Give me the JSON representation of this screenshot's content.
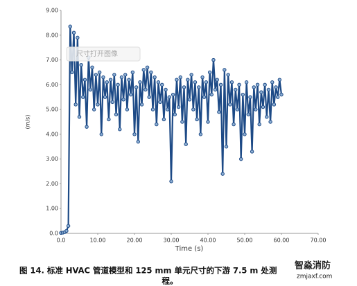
{
  "chart_data": {
    "type": "line",
    "ylabel": "(m/s)",
    "xlabel": "Time (s)",
    "caption": [
      "图 14. 标准 HVAC 管道模型和 125 mm 单元尺寸的下游 7.5 m 处测",
      "程。"
    ],
    "overlay_button": "尺寸打开图像",
    "watermark": [
      "智淼消防",
      "zmjaxf.com"
    ],
    "xlim": [
      0,
      70
    ],
    "ylim": [
      0,
      9
    ],
    "xticks": [
      {
        "value": 0,
        "label": "0.0"
      },
      {
        "value": 10,
        "label": "10.00"
      },
      {
        "value": 20,
        "label": "20.00"
      },
      {
        "value": 30,
        "label": "30.00"
      },
      {
        "value": 40,
        "label": "40.00"
      },
      {
        "value": 50,
        "label": "50.00"
      },
      {
        "value": 60,
        "label": "60.00"
      },
      {
        "value": 70,
        "label": "70.00"
      }
    ],
    "yticks": [
      {
        "value": 0,
        "label": "0.0"
      },
      {
        "value": 1,
        "label": "1.00"
      },
      {
        "value": 2,
        "label": "2.00"
      },
      {
        "value": 3,
        "label": "3.00"
      },
      {
        "value": 4,
        "label": "4.00"
      },
      {
        "value": 5,
        "label": "5.00"
      },
      {
        "value": 6,
        "label": "6.00"
      },
      {
        "value": 7,
        "label": "7.00"
      },
      {
        "value": 8,
        "label": "8.00"
      },
      {
        "value": 9,
        "label": "9.00"
      }
    ],
    "grid": false,
    "x": [
      0,
      0.5,
      1,
      1.5,
      2,
      2.5,
      3,
      3.5,
      4,
      4.5,
      5,
      5.5,
      6,
      6.5,
      7,
      7.5,
      8,
      8.5,
      9,
      9.5,
      10,
      10.5,
      11,
      11.5,
      12,
      12.5,
      13,
      13.5,
      14,
      14.5,
      15,
      15.5,
      16,
      16.5,
      17,
      17.5,
      18,
      18.5,
      19,
      19.5,
      20,
      20.5,
      21,
      21.5,
      22,
      22.5,
      23,
      23.5,
      24,
      24.5,
      25,
      25.5,
      26,
      26.5,
      27,
      27.5,
      28,
      28.5,
      29,
      29.5,
      30,
      30.5,
      31,
      31.5,
      32,
      32.5,
      33,
      33.5,
      34,
      34.5,
      35,
      35.5,
      36,
      36.5,
      37,
      37.5,
      38,
      38.5,
      39,
      39.5,
      40,
      40.5,
      41,
      41.5,
      42,
      42.5,
      43,
      43.5,
      44,
      44.5,
      45,
      45.5,
      46,
      46.5,
      47,
      47.5,
      48,
      48.5,
      49,
      49.5,
      50,
      50.5,
      51,
      51.5,
      52,
      52.5,
      53,
      53.5,
      54,
      54.5,
      55,
      55.5,
      56,
      56.5,
      57,
      57.5,
      58,
      58.5,
      59,
      59.5,
      60
    ],
    "series": [
      {
        "color": "#1d4a86",
        "values": [
          0.02,
          0.03,
          0.05,
          0.1,
          0.3,
          8.35,
          6.5,
          8.1,
          5.2,
          7.9,
          4.7,
          6.8,
          5.5,
          6.2,
          4.3,
          7.1,
          5.8,
          6.7,
          5.0,
          6.4,
          5.2,
          6.5,
          4.0,
          6.3,
          5.5,
          6.1,
          4.6,
          6.2,
          5.3,
          6.4,
          4.8,
          6.0,
          4.2,
          6.3,
          5.4,
          6.4,
          5.0,
          6.2,
          5.6,
          6.5,
          4.0,
          5.9,
          3.7,
          6.1,
          5.2,
          6.6,
          5.8,
          6.7,
          5.5,
          6.5,
          5.0,
          6.3,
          4.4,
          6.1,
          5.3,
          6.0,
          4.6,
          5.8,
          5.0,
          5.5,
          2.1,
          5.6,
          4.8,
          6.2,
          5.1,
          6.3,
          4.5,
          5.9,
          3.6,
          6.2,
          5.4,
          6.4,
          5.0,
          6.1,
          4.6,
          5.9,
          4.0,
          6.3,
          5.5,
          6.1,
          4.5,
          6.5,
          5.6,
          7.0,
          5.8,
          6.2,
          4.9,
          6.0,
          2.4,
          6.6,
          3.5,
          6.4,
          5.2,
          6.1,
          4.4,
          5.8,
          5.0,
          6.0,
          3.0,
          5.6,
          4.0,
          6.1,
          4.8,
          5.5,
          3.3,
          5.9,
          5.0,
          6.0,
          4.4,
          5.7,
          5.1,
          6.0,
          4.7,
          5.8,
          4.5,
          6.1,
          5.2,
          5.9,
          5.5,
          6.2,
          5.6
        ]
      }
    ]
  }
}
